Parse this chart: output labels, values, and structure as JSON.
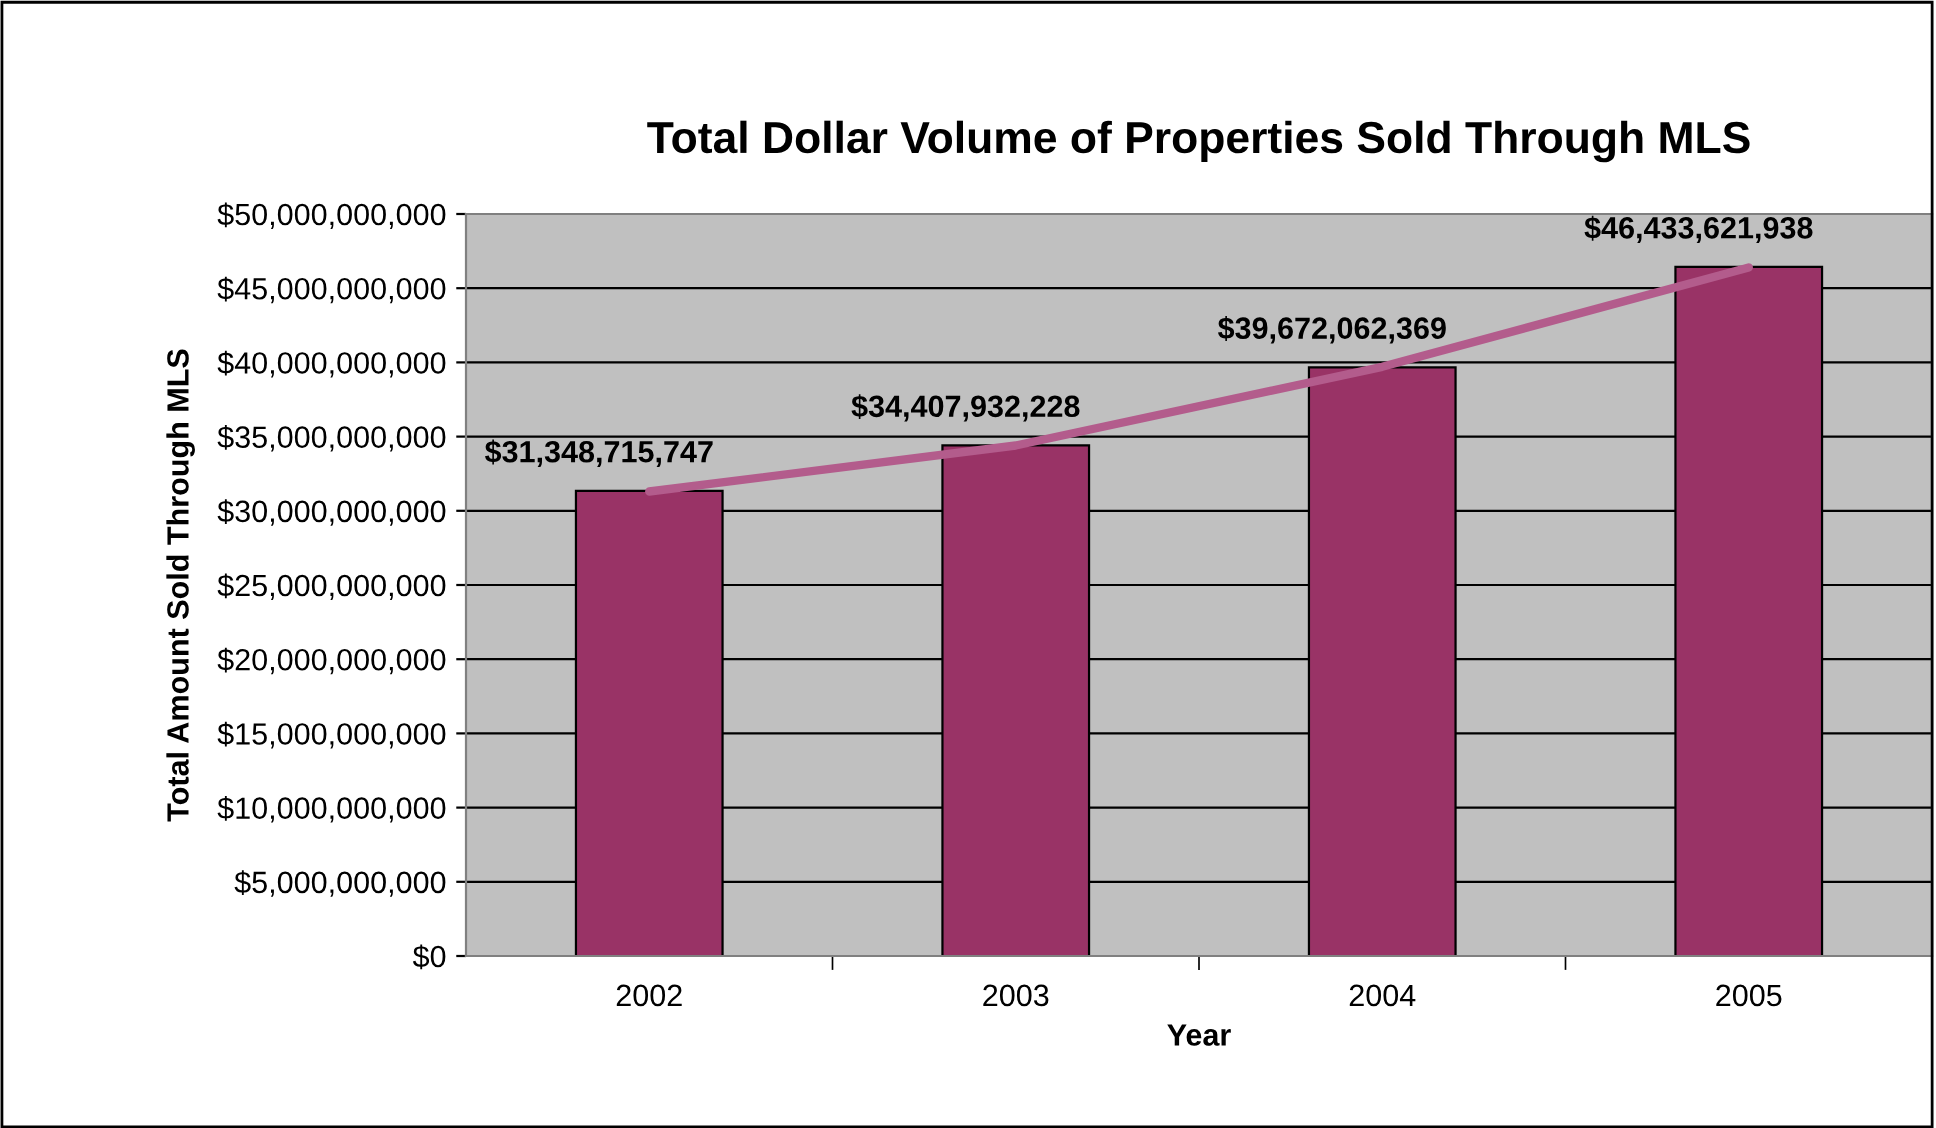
{
  "chart_data": {
    "type": "bar",
    "title": "Total Dollar Volume of Properties Sold Through MLS",
    "xlabel": "Year",
    "ylabel": "Total Amount Sold Through MLS",
    "categories": [
      "2002",
      "2003",
      "2004",
      "2005"
    ],
    "series": [
      {
        "color": "#993366",
        "values": [
          31348715747,
          34407932228,
          39672062369,
          46433621938
        ],
        "value_labels": [
          "$31,348,715,747",
          "$34,407,932,228",
          "$39,672,062,369",
          "$46,433,621,938"
        ]
      },
      {
        "type": "line",
        "color": "#b35c8c",
        "values": [
          31300000000,
          34400000000,
          39700000000,
          46400000000
        ]
      }
    ],
    "ylim": [
      0,
      50000000000
    ],
    "yticks": [
      {
        "value": 0,
        "label": "$0"
      },
      {
        "value": 5000000000,
        "label": "$5,000,000,000"
      },
      {
        "value": 10000000000,
        "label": "$10,000,000,000"
      },
      {
        "value": 15000000000,
        "label": "$15,000,000,000"
      },
      {
        "value": 20000000000,
        "label": "$20,000,000,000"
      },
      {
        "value": 25000000000,
        "label": "$25,000,000,000"
      },
      {
        "value": 30000000000,
        "label": "$30,000,000,000"
      },
      {
        "value": 35000000000,
        "label": "$35,000,000,000"
      },
      {
        "value": 40000000000,
        "label": "$40,000,000,000"
      },
      {
        "value": 45000000000,
        "label": "$45,000,000,000"
      },
      {
        "value": 50000000000,
        "label": "$50,000,000,000"
      }
    ],
    "grid": "y",
    "legend": false
  }
}
